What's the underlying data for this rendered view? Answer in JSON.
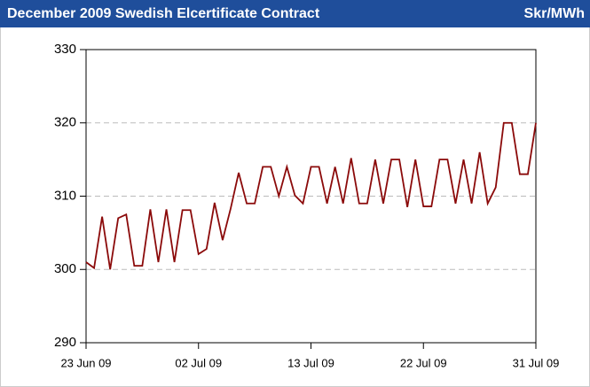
{
  "chart_data": {
    "type": "line",
    "title": "December 2009 Swedish Elcertificate Contract",
    "ylabel": "Skr/MWh",
    "categories": [
      "23 Jun 09",
      null,
      null,
      null,
      null,
      null,
      null,
      null,
      null,
      null,
      null,
      null,
      null,
      null,
      "02 Jul 09",
      null,
      null,
      null,
      null,
      null,
      null,
      null,
      null,
      null,
      null,
      null,
      null,
      null,
      "13 Jul 09",
      null,
      null,
      null,
      null,
      null,
      null,
      null,
      null,
      null,
      null,
      null,
      null,
      null,
      "22 Jul 09",
      null,
      null,
      null,
      null,
      null,
      null,
      null,
      null,
      null,
      null,
      null,
      null,
      null,
      "31 Jul 09"
    ],
    "series": [
      {
        "name": "December 2009",
        "color": "#8b0a0a",
        "values": [
          301,
          300.2,
          307.2,
          300,
          307,
          307.5,
          300.5,
          300.5,
          308.2,
          301,
          308.2,
          301,
          308.1,
          308.1,
          302.1,
          302.8,
          309.1,
          304,
          308.3,
          313.2,
          309,
          309,
          314,
          314,
          310,
          314,
          310.1,
          309,
          314,
          314,
          309,
          314,
          309,
          315.2,
          309,
          309,
          315,
          309,
          315,
          315,
          308.5,
          315,
          308.6,
          308.6,
          315,
          315,
          309,
          315,
          309,
          316,
          309,
          311.2,
          320,
          320,
          313,
          313,
          320
        ]
      }
    ],
    "ylim": [
      290,
      330
    ],
    "yticks": [
      290,
      300,
      310,
      320,
      330
    ],
    "grid": true
  }
}
